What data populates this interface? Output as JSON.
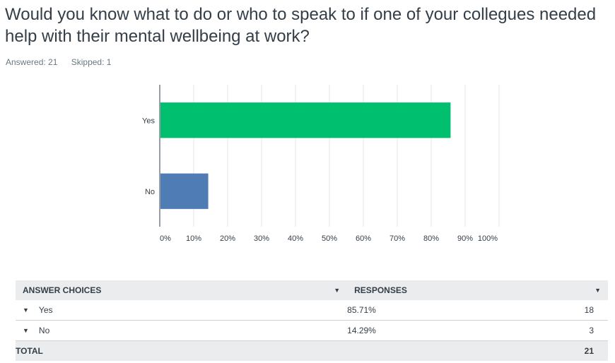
{
  "question": {
    "title": "Would you know what to do or who to speak to if one of your collegues needed help with their mental wellbeing at work?",
    "answered_label": "Answered: 21",
    "skipped_label": "Skipped: 1"
  },
  "colors": {
    "yes_bar": "#00bf6f",
    "no_bar": "#507cb6",
    "grid": "#e5e6e7",
    "axis": "#333e48"
  },
  "chart_data": {
    "type": "bar",
    "orientation": "horizontal",
    "categories": [
      "Yes",
      "No"
    ],
    "values": [
      85.71,
      14.29
    ],
    "xlim": [
      0,
      100
    ],
    "xticks": [
      "0%",
      "10%",
      "20%",
      "30%",
      "40%",
      "50%",
      "60%",
      "70%",
      "80%",
      "90%",
      "100%"
    ],
    "grid": true,
    "bar_colors": [
      "#00bf6f",
      "#507cb6"
    ]
  },
  "table": {
    "headers": {
      "choices": "ANSWER CHOICES",
      "responses": "RESPONSES"
    },
    "rows": [
      {
        "choice": "Yes",
        "percent": "85.71%",
        "count": "18"
      },
      {
        "choice": "No",
        "percent": "14.29%",
        "count": "3"
      }
    ],
    "total_label": "TOTAL",
    "total_count": "21"
  }
}
